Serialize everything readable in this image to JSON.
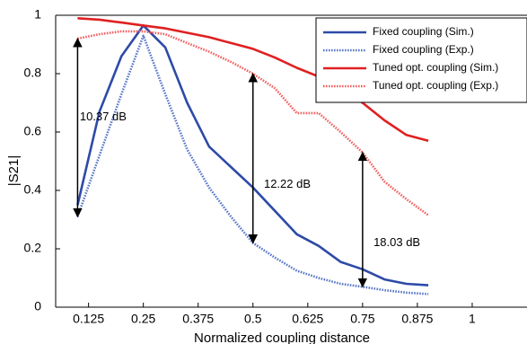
{
  "chart_data": {
    "type": "line",
    "xlabel": "Normalized coupling distance",
    "ylabel": "|S21|",
    "xlim": [
      0.05,
      1.125
    ],
    "ylim": [
      0,
      1
    ],
    "xticks": [
      0.125,
      0.25,
      0.375,
      0.5,
      0.625,
      0.75,
      0.875,
      1
    ],
    "xtick_labels": [
      "0.125",
      "0.25",
      "0.375",
      "0.5",
      "0.625",
      "0.75",
      "0.875",
      "1"
    ],
    "yticks": [
      0,
      0.2,
      0.4,
      0.6,
      0.8,
      1
    ],
    "ytick_labels": [
      "0",
      "0.2",
      "0.4",
      "0.6",
      "0.8",
      "1"
    ],
    "grid": false,
    "legend_position": "top-right",
    "series": [
      {
        "name": "Fixed coupling (Sim.)",
        "color": "#2e4aa8",
        "dash": "solid",
        "x": [
          0.1,
          0.15,
          0.2,
          0.25,
          0.3,
          0.35,
          0.4,
          0.45,
          0.5,
          0.55,
          0.6,
          0.65,
          0.7,
          0.75,
          0.8,
          0.85,
          0.9
        ],
        "y": [
          0.35,
          0.67,
          0.86,
          0.965,
          0.89,
          0.7,
          0.55,
          0.48,
          0.41,
          0.33,
          0.25,
          0.21,
          0.155,
          0.13,
          0.095,
          0.08,
          0.075
        ]
      },
      {
        "name": "Fixed coupling (Exp.)",
        "color": "#5a78c8",
        "dash": "dotted",
        "x": [
          0.1,
          0.15,
          0.2,
          0.25,
          0.3,
          0.35,
          0.4,
          0.45,
          0.5,
          0.55,
          0.6,
          0.65,
          0.7,
          0.75,
          0.8,
          0.85,
          0.9
        ],
        "y": [
          0.31,
          0.52,
          0.73,
          0.93,
          0.73,
          0.54,
          0.41,
          0.31,
          0.22,
          0.17,
          0.125,
          0.1,
          0.08,
          0.07,
          0.058,
          0.05,
          0.045
        ]
      },
      {
        "name": "Tuned opt. coupling (Sim.)",
        "color": "#e02020",
        "dash": "solid",
        "x": [
          0.1,
          0.15,
          0.2,
          0.25,
          0.3,
          0.35,
          0.4,
          0.45,
          0.5,
          0.55,
          0.6,
          0.65,
          0.7,
          0.75,
          0.8,
          0.85,
          0.9
        ],
        "y": [
          0.99,
          0.985,
          0.975,
          0.965,
          0.955,
          0.94,
          0.925,
          0.905,
          0.885,
          0.855,
          0.82,
          0.79,
          0.75,
          0.7,
          0.64,
          0.59,
          0.57
        ]
      },
      {
        "name": "Tuned opt. coupling (Exp.)",
        "color": "#f06060",
        "dash": "dotted",
        "x": [
          0.1,
          0.15,
          0.2,
          0.25,
          0.3,
          0.35,
          0.4,
          0.45,
          0.5,
          0.55,
          0.6,
          0.65,
          0.7,
          0.75,
          0.8,
          0.85,
          0.9
        ],
        "y": [
          0.92,
          0.935,
          0.945,
          0.945,
          0.935,
          0.905,
          0.875,
          0.84,
          0.8,
          0.75,
          0.665,
          0.665,
          0.6,
          0.53,
          0.43,
          0.37,
          0.315
        ]
      }
    ],
    "annotations": [
      {
        "text": "10.37 dB",
        "x": 0.1,
        "y_top": 0.92,
        "y_bottom": 0.31,
        "label_x": 0.105,
        "label_y": 0.65
      },
      {
        "text": "12.22 dB",
        "x": 0.5,
        "y_top": 0.8,
        "y_bottom": 0.22,
        "label_x": 0.525,
        "label_y": 0.42
      },
      {
        "text": "18.03 dB",
        "x": 0.75,
        "y_top": 0.53,
        "y_bottom": 0.07,
        "label_x": 0.775,
        "label_y": 0.22
      }
    ]
  }
}
